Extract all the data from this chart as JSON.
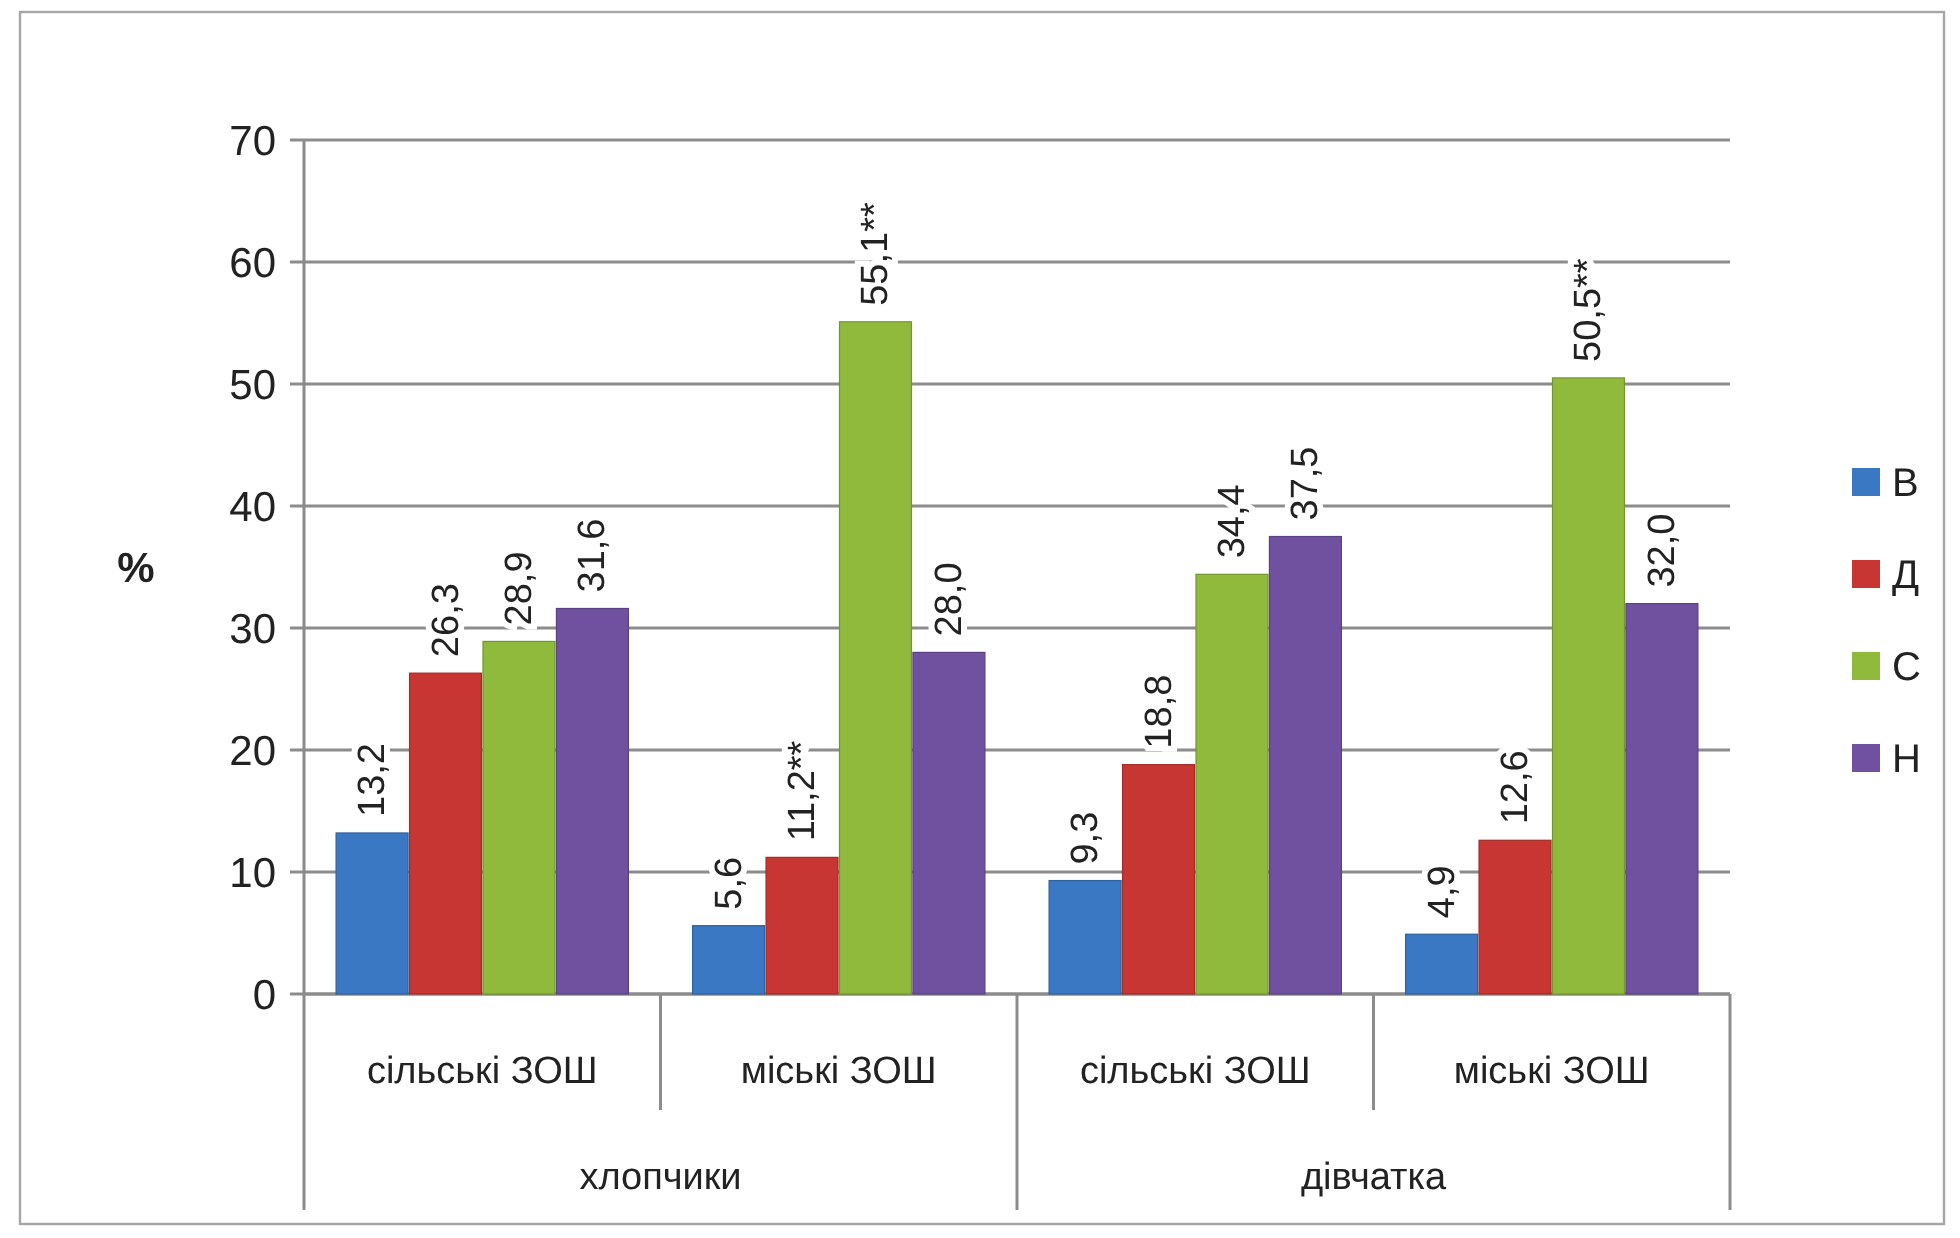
{
  "chart_data": {
    "type": "bar",
    "categories": [
      "сільські ЗОШ",
      "міські ЗОШ",
      "сільські ЗОШ",
      "міські ЗОШ"
    ],
    "ylabel": "%",
    "ylim": [
      0,
      70
    ],
    "yticks": [
      0,
      10,
      20,
      30,
      40,
      50,
      60,
      70
    ],
    "grid": "y",
    "legend": "right",
    "annotations": [
      "хлопчики",
      "дівчатка"
    ],
    "series": [
      {
        "name": "В",
        "color": "#3a78c3",
        "values": [
          13.2,
          5.6,
          9.3,
          4.9
        ],
        "value_labels": [
          "13,2",
          "5,6",
          "9,3",
          "4,9"
        ]
      },
      {
        "name": "Д",
        "color": "#c73633",
        "values": [
          26.3,
          11.2,
          18.8,
          12.6
        ],
        "value_labels": [
          "26,3",
          "11,2**",
          "18,8",
          "12,6"
        ]
      },
      {
        "name": "С",
        "color": "#8fba3c",
        "values": [
          28.9,
          55.1,
          34.4,
          50.5
        ],
        "value_labels": [
          "28,9",
          "55,1**",
          "34,4",
          "50,5**"
        ]
      },
      {
        "name": "Н",
        "color": "#7051a0",
        "values": [
          31.6,
          28.0,
          37.5,
          32.0
        ],
        "value_labels": [
          "31,6",
          "28,0",
          "37,5",
          "32,0"
        ]
      }
    ]
  }
}
